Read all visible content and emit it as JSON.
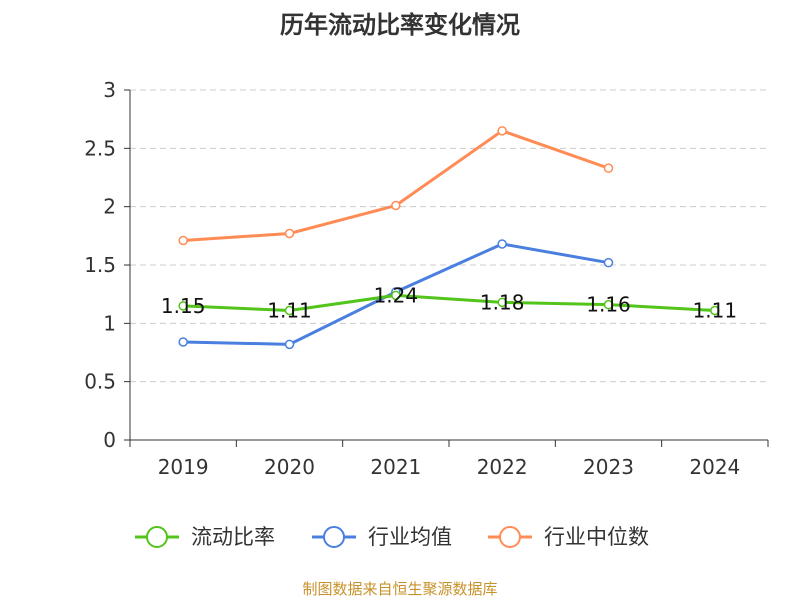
{
  "chart_data": {
    "type": "line",
    "title": "历年流动比率变化情况",
    "categories": [
      "2019",
      "2020",
      "2021",
      "2022",
      "2023",
      "2024"
    ],
    "ylim": [
      0,
      3
    ],
    "yticks": [
      "0",
      "0.5",
      "1",
      "1.5",
      "2",
      "2.5",
      "3"
    ],
    "grid": true,
    "legend_position": "bottom",
    "series": [
      {
        "name": "流动比率",
        "color": "#52c41a",
        "values": [
          1.15,
          1.11,
          1.24,
          1.18,
          1.16,
          1.11
        ],
        "labels": [
          "1.15",
          "1.11",
          "1.24",
          "1.18",
          "1.16",
          "1.11"
        ]
      },
      {
        "name": "行业均值",
        "color": "#4a7fe0",
        "values": [
          0.84,
          0.82,
          1.27,
          1.68,
          1.52,
          null
        ]
      },
      {
        "name": "行业中位数",
        "color": "#ff8c55",
        "values": [
          1.71,
          1.77,
          2.01,
          2.65,
          2.33,
          null
        ]
      }
    ]
  },
  "footer": {
    "source": "制图数据来自恒生聚源数据库",
    "color": "#c8922a"
  }
}
